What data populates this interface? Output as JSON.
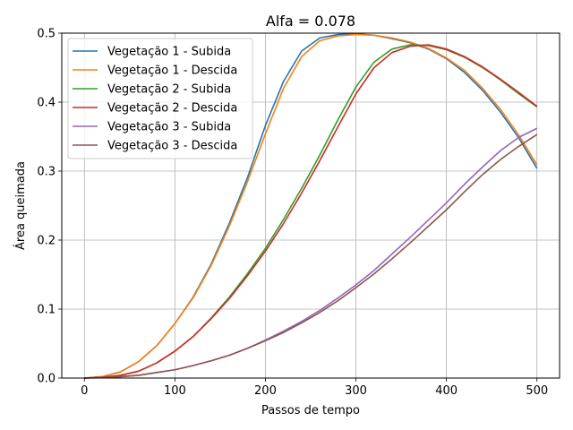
{
  "chart_data": {
    "type": "line",
    "title": "Alfa = 0.078",
    "xlabel": "Passos de tempo",
    "ylabel": "Área queimada",
    "xlim": [
      -25,
      525
    ],
    "ylim": [
      0,
      0.5
    ],
    "xticks": [
      "0",
      "100",
      "200",
      "300",
      "400",
      "500"
    ],
    "yticks": [
      "0.0",
      "0.1",
      "0.2",
      "0.3",
      "0.4",
      "0.5"
    ],
    "grid": true,
    "legend_position": "top-left",
    "series": [
      {
        "name": "Vegetação 1 - Subida",
        "color": "#1f77b4",
        "x": [
          0,
          20,
          40,
          60,
          80,
          100,
          120,
          140,
          160,
          180,
          200,
          220,
          240,
          260,
          280,
          300,
          320,
          340,
          360,
          380,
          400,
          420,
          440,
          460,
          480,
          500
        ],
        "y": [
          0.0,
          0.002,
          0.009,
          0.024,
          0.047,
          0.079,
          0.117,
          0.165,
          0.224,
          0.29,
          0.366,
          0.43,
          0.474,
          0.493,
          0.498,
          0.499,
          0.497,
          0.492,
          0.486,
          0.477,
          0.463,
          0.443,
          0.417,
          0.385,
          0.348,
          0.304
        ]
      },
      {
        "name": "Vegetação 1 - Descida",
        "color": "#ff7f0e",
        "x": [
          0,
          20,
          40,
          60,
          80,
          100,
          120,
          140,
          160,
          180,
          200,
          220,
          240,
          260,
          280,
          300,
          320,
          340,
          360,
          380,
          400,
          420,
          440,
          460,
          480,
          500
        ],
        "y": [
          0.0,
          0.002,
          0.009,
          0.024,
          0.047,
          0.079,
          0.116,
          0.163,
          0.22,
          0.284,
          0.354,
          0.42,
          0.466,
          0.489,
          0.496,
          0.498,
          0.497,
          0.493,
          0.487,
          0.478,
          0.464,
          0.446,
          0.42,
          0.389,
          0.352,
          0.309
        ]
      },
      {
        "name": "Vegetação 2 - Subida",
        "color": "#2ca02c",
        "x": [
          0,
          20,
          40,
          60,
          80,
          100,
          120,
          140,
          160,
          180,
          200,
          220,
          240,
          260,
          280,
          300,
          320,
          340,
          360,
          380,
          400,
          420,
          440,
          460,
          480,
          500
        ],
        "y": [
          0.0,
          0.001,
          0.004,
          0.01,
          0.022,
          0.039,
          0.06,
          0.087,
          0.117,
          0.151,
          0.188,
          0.23,
          0.275,
          0.323,
          0.374,
          0.422,
          0.458,
          0.477,
          0.483,
          0.482,
          0.476,
          0.465,
          0.45,
          0.432,
          0.412,
          0.393
        ]
      },
      {
        "name": "Vegetação 2 - Descida",
        "color": "#d62728",
        "x": [
          0,
          20,
          40,
          60,
          80,
          100,
          120,
          140,
          160,
          180,
          200,
          220,
          240,
          260,
          280,
          300,
          320,
          340,
          360,
          380,
          400,
          420,
          440,
          460,
          480,
          500
        ],
        "y": [
          0.0,
          0.001,
          0.004,
          0.01,
          0.022,
          0.039,
          0.06,
          0.086,
          0.115,
          0.148,
          0.184,
          0.224,
          0.268,
          0.315,
          0.364,
          0.412,
          0.45,
          0.472,
          0.481,
          0.483,
          0.477,
          0.466,
          0.451,
          0.433,
          0.414,
          0.394
        ]
      },
      {
        "name": "Vegetação 3 - Subida",
        "color": "#9467bd",
        "x": [
          0,
          20,
          40,
          60,
          80,
          100,
          120,
          140,
          160,
          180,
          200,
          220,
          240,
          260,
          280,
          300,
          320,
          340,
          360,
          380,
          400,
          420,
          440,
          460,
          480,
          500
        ],
        "y": [
          0.0,
          0.0005,
          0.002,
          0.004,
          0.008,
          0.012,
          0.018,
          0.025,
          0.033,
          0.043,
          0.055,
          0.068,
          0.082,
          0.098,
          0.116,
          0.135,
          0.156,
          0.18,
          0.204,
          0.229,
          0.254,
          0.281,
          0.306,
          0.33,
          0.349,
          0.362
        ]
      },
      {
        "name": "Vegetação 3 - Descida",
        "color": "#8c564b",
        "x": [
          0,
          20,
          40,
          60,
          80,
          100,
          120,
          140,
          160,
          180,
          200,
          220,
          240,
          260,
          280,
          300,
          320,
          340,
          360,
          380,
          400,
          420,
          440,
          460,
          480,
          500
        ],
        "y": [
          0.0,
          0.0005,
          0.002,
          0.004,
          0.008,
          0.012,
          0.018,
          0.025,
          0.033,
          0.043,
          0.054,
          0.066,
          0.08,
          0.095,
          0.112,
          0.131,
          0.151,
          0.173,
          0.196,
          0.22,
          0.244,
          0.27,
          0.295,
          0.317,
          0.336,
          0.353
        ]
      }
    ]
  }
}
